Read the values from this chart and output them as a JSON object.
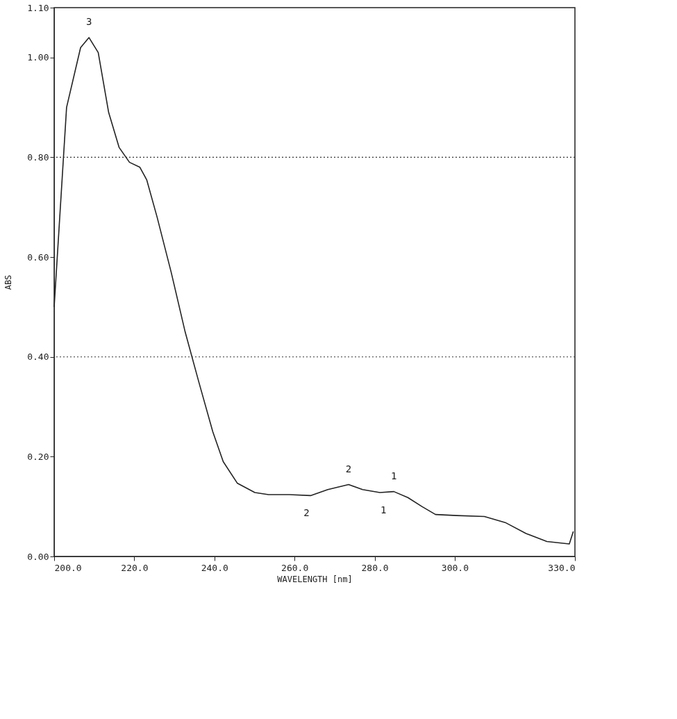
{
  "chart_data": {
    "type": "line",
    "xlabel": "WAVELENGTH [nm]",
    "ylabel": "ABS",
    "xlim": [
      200,
      330
    ],
    "ylim": [
      0,
      1.1
    ],
    "xticks": [
      {
        "value": 200,
        "label": "200.0"
      },
      {
        "value": 220,
        "label": "220.0"
      },
      {
        "value": 240,
        "label": "240.0"
      },
      {
        "value": 260,
        "label": "260.0"
      },
      {
        "value": 280,
        "label": "280.0"
      },
      {
        "value": 300,
        "label": "300.0"
      },
      {
        "value": 330,
        "label": "330.0"
      }
    ],
    "yticks": [
      {
        "value": 0,
        "label": "0.00"
      },
      {
        "value": 0.2,
        "label": "0.20"
      },
      {
        "value": 0.4,
        "label": "0.40"
      },
      {
        "value": 0.6,
        "label": "0.60"
      },
      {
        "value": 0.8,
        "label": "0.80"
      },
      {
        "value": 1.0,
        "label": "1.00"
      },
      {
        "value": 1.1,
        "label": "1.10"
      }
    ],
    "grid": false,
    "marker": "none",
    "line_style": "solid",
    "series": [
      {
        "color": "#222222",
        "x": [
          200,
          203.1,
          206.6,
          208.7,
          211,
          213.6,
          216.2,
          218.8,
          221.4,
          223.1,
          225.7,
          229.2,
          232.7,
          236.1,
          239.6,
          242.2,
          245.7,
          250.1,
          253.5,
          258.7,
          264,
          268.3,
          273.5,
          277,
          281.3,
          284.8,
          288.3,
          291.8,
          295.2,
          300.5,
          307.4,
          312.6,
          317.8,
          323,
          328.6,
          329.6
        ],
        "values": [
          0.5,
          0.9,
          1.02,
          1.04,
          1.01,
          0.89,
          0.82,
          0.79,
          0.78,
          0.755,
          0.68,
          0.57,
          0.45,
          0.35,
          0.25,
          0.19,
          0.147,
          0.128,
          0.124,
          0.124,
          0.122,
          0.134,
          0.144,
          0.134,
          0.128,
          0.13,
          0.118,
          0.1,
          0.084,
          0.082,
          0.08,
          0.068,
          0.046,
          0.03,
          0.025,
          0.05
        ]
      }
    ],
    "ref_lines": [
      {
        "axis": "y",
        "value": 0.4,
        "line_style": "dotted"
      },
      {
        "axis": "y",
        "value": 0.8,
        "line_style": "dotted"
      }
    ],
    "annotations": [
      {
        "text": "3",
        "x": 208.7,
        "y": 1.04
      },
      {
        "text": "2",
        "x": 273.5,
        "y": 0.144
      },
      {
        "text": "1",
        "x": 284.8,
        "y": 0.13
      },
      {
        "text": "2",
        "x": 263,
        "y": 0.122
      },
      {
        "text": "1",
        "x": 282.2,
        "y": 0.128
      }
    ]
  }
}
